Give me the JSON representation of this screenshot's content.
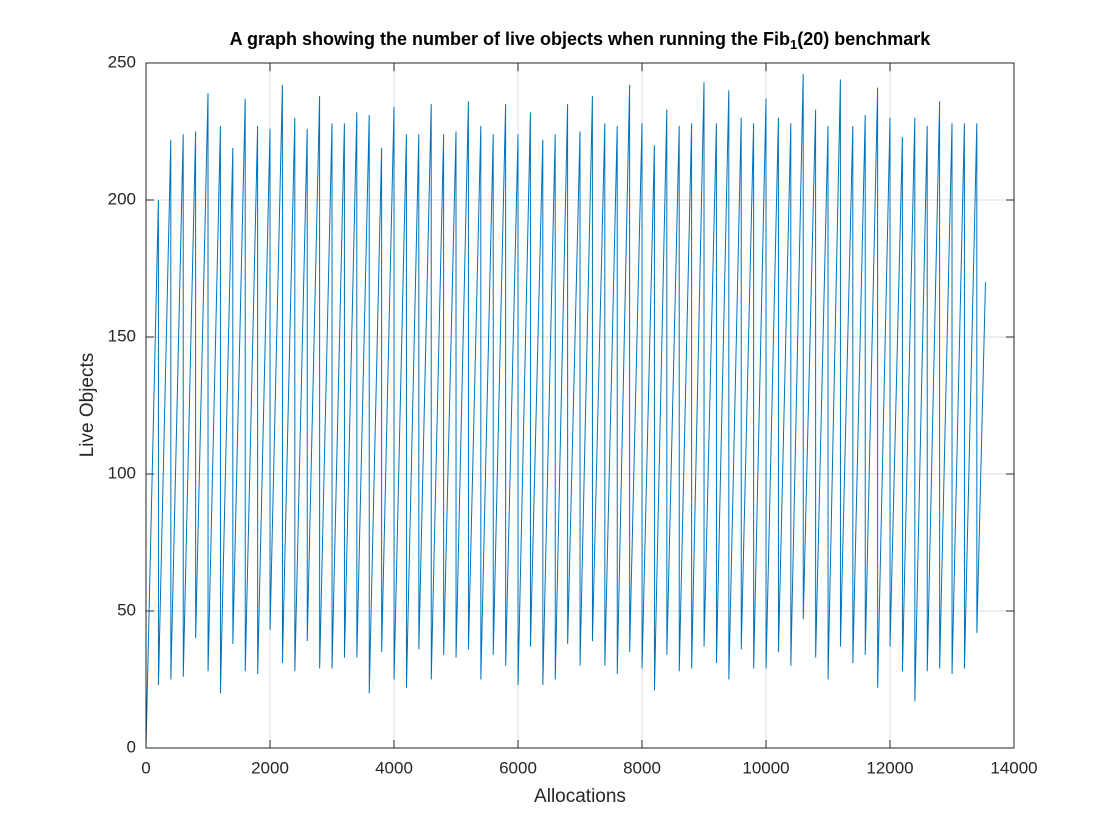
{
  "chart_data": {
    "type": "line",
    "title": [
      "A graph showing the number of live objects when running the Fib",
      "1",
      "(20) benchmark"
    ],
    "xlabel": "Allocations",
    "ylabel": "Live Objects",
    "xlim": [
      0,
      14000
    ],
    "xticks": [
      0,
      2000,
      4000,
      6000,
      8000,
      10000,
      12000,
      14000
    ],
    "ylim": [
      0,
      250
    ],
    "yticks": [
      0,
      50,
      100,
      150,
      200,
      250
    ],
    "grid": true,
    "series": [
      {
        "color": "#0072bd",
        "x": [
          0,
          200,
          201,
          400,
          401,
          600,
          601,
          800,
          801,
          1000,
          1001,
          1200,
          1201,
          1400,
          1401,
          1600,
          1601,
          1800,
          1801,
          2000,
          2001,
          2200,
          2201,
          2400,
          2401,
          2600,
          2601,
          2800,
          2801,
          3000,
          3001,
          3200,
          3201,
          3400,
          3401,
          3600,
          3601,
          3800,
          3801,
          4000,
          4001,
          4200,
          4201,
          4400,
          4401,
          4600,
          4601,
          4800,
          4801,
          5000,
          5001,
          5200,
          5201,
          5400,
          5401,
          5600,
          5601,
          5800,
          5801,
          6000,
          6001,
          6200,
          6201,
          6400,
          6401,
          6600,
          6601,
          6800,
          6801,
          7000,
          7001,
          7200,
          7201,
          7400,
          7401,
          7600,
          7601,
          7800,
          7801,
          8000,
          8001,
          8200,
          8201,
          8400,
          8401,
          8600,
          8601,
          8800,
          8801,
          9000,
          9001,
          9200,
          9201,
          9400,
          9401,
          9600,
          9601,
          9800,
          9801,
          10000,
          10001,
          10200,
          10201,
          10400,
          10401,
          10600,
          10601,
          10800,
          10801,
          11000,
          11001,
          11200,
          11201,
          11400,
          11401,
          11600,
          11601,
          11800,
          11801,
          12000,
          12001,
          12200,
          12201,
          12400,
          12401,
          12600,
          12601,
          12800,
          12801,
          13000,
          13001,
          13200,
          13201,
          13400,
          13401,
          13540
        ],
        "values": [
          0,
          200,
          23,
          222,
          25,
          224,
          26,
          225,
          40,
          239,
          28,
          227,
          20,
          219,
          38,
          237,
          28,
          227,
          27,
          226,
          43,
          242,
          31,
          230,
          28,
          226,
          39,
          238,
          29,
          228,
          29,
          228,
          33,
          232,
          33,
          231,
          20,
          219,
          35,
          234,
          25,
          224,
          22,
          224,
          36,
          235,
          25,
          224,
          34,
          225,
          33,
          236,
          36,
          227,
          25,
          224,
          34,
          235,
          30,
          224,
          23,
          232,
          37,
          222,
          23,
          224,
          25,
          235,
          38,
          225,
          30,
          238,
          39,
          228,
          30,
          227,
          27,
          242,
          35,
          228,
          29,
          220,
          21,
          233,
          34,
          227,
          28,
          228,
          29,
          243,
          37,
          228,
          31,
          240,
          25,
          230,
          36,
          228,
          29,
          237,
          29,
          230,
          35,
          228,
          30,
          246,
          47,
          233,
          33,
          227,
          25,
          244,
          37,
          227,
          31,
          231,
          34,
          241,
          22,
          230,
          37,
          223,
          28,
          230,
          17,
          227,
          28,
          236,
          29,
          228,
          27,
          228,
          29,
          228,
          42,
          170
        ]
      }
    ]
  }
}
